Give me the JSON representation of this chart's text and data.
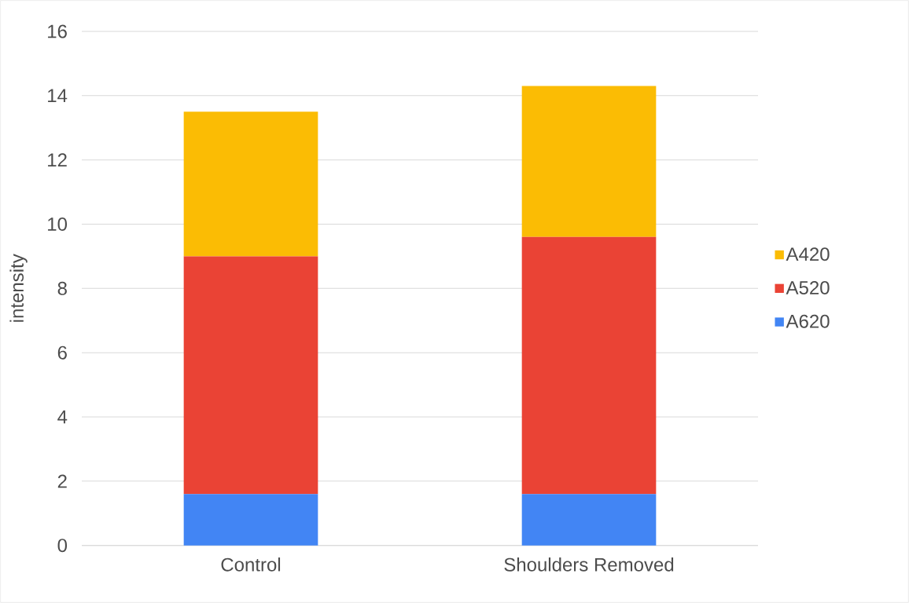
{
  "chart_data": {
    "type": "bar",
    "stacked": true,
    "ylabel": "intensity",
    "categories": [
      "Control",
      "Shoulders Removed"
    ],
    "series": [
      {
        "name": "A620",
        "color": "#4285f4",
        "values": [
          1.6,
          1.6
        ]
      },
      {
        "name": "A520",
        "color": "#ea4335",
        "values": [
          7.4,
          8.0
        ]
      },
      {
        "name": "A420",
        "color": "#fbbc04",
        "values": [
          4.5,
          4.7
        ]
      }
    ],
    "ylim": [
      0,
      16
    ],
    "yticks": [
      0,
      2,
      4,
      6,
      8,
      10,
      12,
      14,
      16
    ],
    "grid": "y",
    "legend": "right"
  }
}
